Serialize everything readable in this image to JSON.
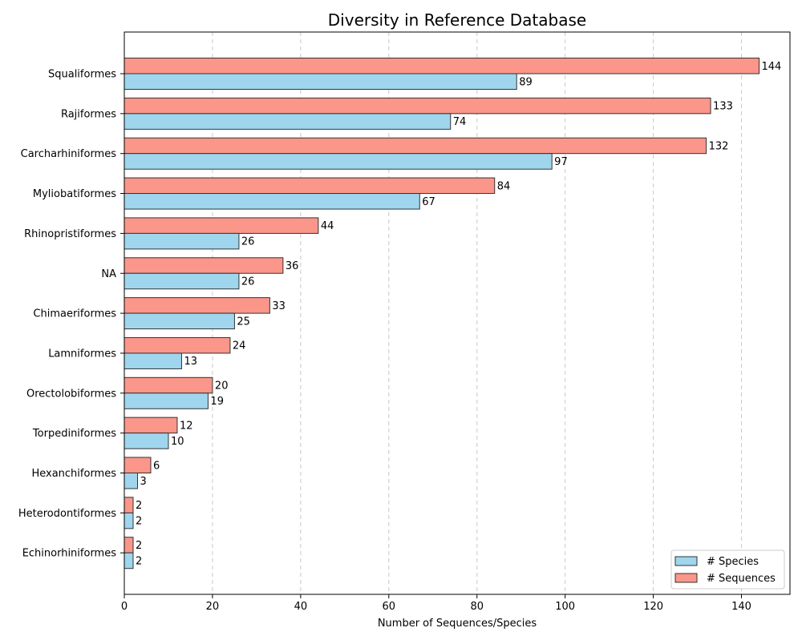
{
  "chart_data": {
    "type": "bar",
    "orientation": "horizontal",
    "title": "Diversity in Reference Database",
    "xlabel": "Number of Sequences/Species",
    "ylabel": "",
    "xlim": [
      0,
      151
    ],
    "xticks": [
      0,
      20,
      40,
      60,
      80,
      100,
      120,
      140
    ],
    "grid": "x-dashed",
    "legend_position": "bottom-right",
    "categories": [
      "Squaliformes",
      "Rajiformes",
      "Carcharhiniformes",
      "Myliobatiformes",
      "Rhinopristiformes",
      "NA",
      "Chimaeriformes",
      "Lamniformes",
      "Orectolobiformes",
      "Torpediniformes",
      "Hexanchiformes",
      "Heterodontiformes",
      "Echinorhiniformes"
    ],
    "series": [
      {
        "name": "# Species",
        "color": "#9fd6ee",
        "values": [
          89,
          74,
          97,
          67,
          26,
          26,
          25,
          13,
          19,
          10,
          3,
          2,
          2
        ]
      },
      {
        "name": "# Sequences",
        "color": "#fa968a",
        "values": [
          144,
          133,
          132,
          84,
          44,
          36,
          33,
          24,
          20,
          12,
          6,
          2,
          2
        ]
      }
    ]
  }
}
